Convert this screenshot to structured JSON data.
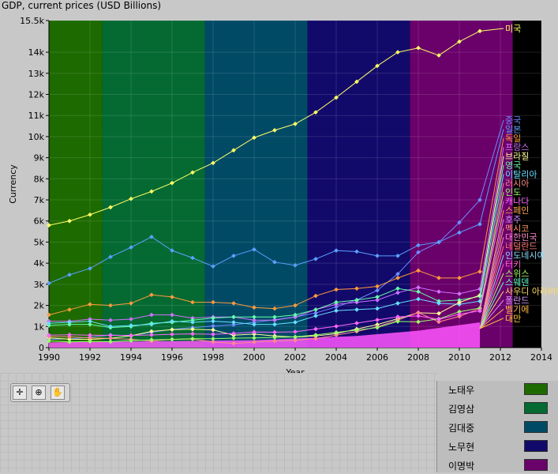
{
  "window": {
    "title": "GDP, current prices (USD Billions)"
  },
  "toolbar": {
    "buttons": [
      "cursor-move",
      "zoom",
      "pan"
    ]
  },
  "legend": {
    "items": [
      {
        "label": "노태우",
        "color": "#1d6a00"
      },
      {
        "label": "김영삼",
        "color": "#056a32"
      },
      {
        "label": "김대중",
        "color": "#004a66"
      },
      {
        "label": "노무현",
        "color": "#120a6a"
      },
      {
        "label": "이명박",
        "color": "#6a006a"
      }
    ]
  },
  "chart_data": {
    "type": "line",
    "title": "GDP, current prices (USD Billions)",
    "xlabel": "Year",
    "ylabel": "Currency",
    "xlim": [
      1990,
      2014
    ],
    "ylim": [
      0,
      15500
    ],
    "x_ticks": [
      "1990",
      "1992",
      "1994",
      "1996",
      "1998",
      "2000",
      "2002",
      "2004",
      "2006",
      "2008",
      "2010",
      "2012",
      "2014"
    ],
    "y_ticks": [
      "0",
      "1k",
      "2k",
      "3k",
      "4k",
      "5k",
      "6k",
      "7k",
      "8k",
      "9k",
      "10k",
      "11k",
      "12k",
      "13k",
      "14k",
      "15.5k"
    ],
    "grid": true,
    "plot_background": "#000000",
    "bands": [
      {
        "name": "노태우",
        "from": 1990,
        "to": 1992.6,
        "color": "#1d6a00"
      },
      {
        "name": "김영삼",
        "from": 1992.6,
        "to": 1997.6,
        "color": "#056a32"
      },
      {
        "name": "김대중",
        "from": 1997.6,
        "to": 2002.6,
        "color": "#004a66"
      },
      {
        "name": "노무현",
        "from": 2002.6,
        "to": 2007.6,
        "color": "#120a6a"
      },
      {
        "name": "이명박",
        "from": 2007.6,
        "to": 2012.6,
        "color": "#6a006a"
      }
    ],
    "x": [
      1990,
      1991,
      1992,
      1993,
      1994,
      1995,
      1996,
      1997,
      1998,
      1999,
      2000,
      2001,
      2002,
      2003,
      2004,
      2005,
      2006,
      2007,
      2008,
      2009,
      2010,
      2011
    ],
    "series": [
      {
        "name": "미국",
        "color": "#ffff66",
        "values": [
          5800,
          6000,
          6300,
          6650,
          7050,
          7400,
          7800,
          8300,
          8750,
          9350,
          9950,
          10300,
          10600,
          11150,
          11850,
          12600,
          13350,
          14000,
          14200,
          13850,
          14500,
          15000
        ]
      },
      {
        "name": "중국",
        "color": "#6e8cff",
        "values": [
          390,
          410,
          490,
          600,
          560,
          730,
          860,
          950,
          1020,
          1080,
          1200,
          1320,
          1450,
          1640,
          1930,
          2260,
          2710,
          3490,
          4520,
          4990,
          5930,
          7000
        ]
      },
      {
        "name": "일본",
        "color": "#5aa0ff",
        "values": [
          3050,
          3450,
          3750,
          4300,
          4750,
          5250,
          4600,
          4250,
          3850,
          4350,
          4650,
          4050,
          3900,
          4200,
          4600,
          4550,
          4350,
          4350,
          4850,
          5000,
          5450,
          5850
        ]
      },
      {
        "name": "독일",
        "color": "#ff9a3c",
        "values": [
          1550,
          1800,
          2050,
          2000,
          2100,
          2500,
          2400,
          2150,
          2150,
          2100,
          1900,
          1850,
          2000,
          2450,
          2750,
          2800,
          2900,
          3300,
          3650,
          3300,
          3300,
          3600
        ]
      },
      {
        "name": "프랑스",
        "color": "#d070ff",
        "values": [
          1250,
          1250,
          1350,
          1300,
          1350,
          1550,
          1550,
          1400,
          1450,
          1450,
          1300,
          1300,
          1450,
          1800,
          2050,
          2150,
          2250,
          2600,
          2850,
          2650,
          2550,
          2780
        ]
      },
      {
        "name": "영국",
        "color": "#66ffaa",
        "values": [
          1050,
          1100,
          1100,
          950,
          1000,
          1150,
          1200,
          1300,
          1400,
          1450,
          1450,
          1450,
          1550,
          1800,
          2150,
          2250,
          2400,
          2800,
          2650,
          2200,
          2250,
          2430
        ]
      },
      {
        "name": "이탈리아",
        "color": "#66e0ff",
        "values": [
          1150,
          1200,
          1250,
          1000,
          1050,
          1100,
          1250,
          1200,
          1250,
          1200,
          1100,
          1100,
          1200,
          1500,
          1750,
          1800,
          1850,
          2100,
          2300,
          2100,
          2050,
          2200
        ]
      },
      {
        "name": "브라질",
        "color": "#ffff99",
        "values": [
          460,
          400,
          390,
          440,
          560,
          770,
          850,
          870,
          840,
          590,
          640,
          550,
          500,
          550,
          660,
          880,
          1090,
          1370,
          1650,
          1620,
          2140,
          2480
        ]
      },
      {
        "name": "러시아",
        "color": "#ff8a8a",
        "values": [
          520,
          510,
          460,
          435,
          395,
          313,
          392,
          405,
          271,
          196,
          260,
          307,
          345,
          430,
          591,
          764,
          990,
          1300,
          1660,
          1220,
          1480,
          1850
        ]
      },
      {
        "name": "인도",
        "color": "#9aff6a",
        "values": [
          320,
          270,
          290,
          280,
          330,
          370,
          390,
          420,
          420,
          450,
          460,
          480,
          510,
          600,
          720,
          830,
          950,
          1240,
          1220,
          1360,
          1700,
          1870
        ]
      },
      {
        "name": "캐나다",
        "color": "#ff66ff",
        "values": [
          590,
          610,
          590,
          580,
          580,
          600,
          630,
          650,
          630,
          670,
          740,
          730,
          750,
          880,
          1010,
          1160,
          1310,
          1460,
          1500,
          1340,
          1580,
          1740
        ]
      }
    ],
    "end_labels": [
      "미국",
      "중국",
      "일본",
      "독일",
      "프랑스",
      "브라질",
      "영국",
      "이탈리아",
      "러시아",
      "인도",
      "캐나다",
      "스페인",
      "호주",
      "멕시코",
      "대한민국",
      "네덜란드",
      "인도네시아",
      "터키",
      "스위스",
      "스웨덴",
      "사우디 아라비아",
      "폴란드",
      "벨기에",
      "대만"
    ]
  }
}
